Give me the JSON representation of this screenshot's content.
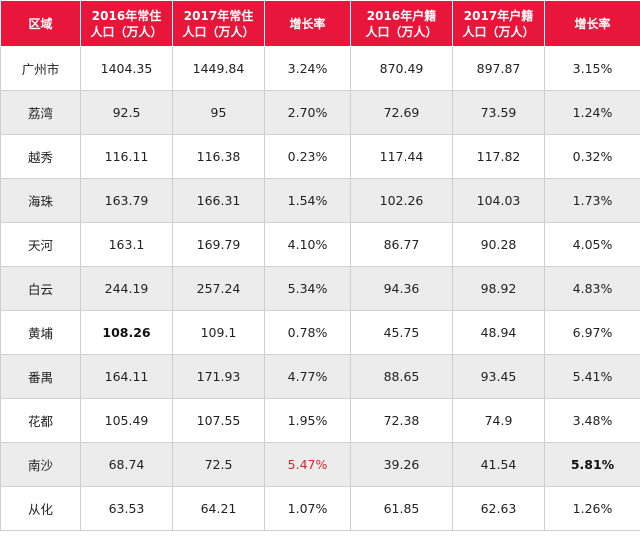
{
  "headers": [
    "区域",
    "2016年常住\n人口（万人）",
    "2017年常住\n人口（万人）",
    "增长率",
    "2016年户籍\n人口（万人）",
    "2017年户籍\n人口（万人）",
    "增长率"
  ],
  "rows": [
    [
      "广州市",
      "1404.35",
      "1449.84",
      "3.24%",
      "870.49",
      "897.87",
      "3.15%"
    ],
    [
      "荔湾",
      "92.5",
      "95",
      "2.70%",
      "72.69",
      "73.59",
      "1.24%"
    ],
    [
      "越秀",
      "116.11",
      "116.38",
      "0.23%",
      "117.44",
      "117.82",
      "0.32%"
    ],
    [
      "海珠",
      "163.79",
      "166.31",
      "1.54%",
      "102.26",
      "104.03",
      "1.73%"
    ],
    [
      "天河",
      "163.1",
      "169.79",
      "4.10%",
      "86.77",
      "90.28",
      "4.05%"
    ],
    [
      "白云",
      "244.19",
      "257.24",
      "5.34%",
      "94.36",
      "98.92",
      "4.83%"
    ],
    [
      "黄埔",
      "108.26",
      "109.1",
      "0.78%",
      "45.75",
      "48.94",
      "6.97%"
    ],
    [
      "番禺",
      "164.11",
      "171.93",
      "4.77%",
      "88.65",
      "93.45",
      "5.41%"
    ],
    [
      "花都",
      "105.49",
      "107.55",
      "1.95%",
      "72.38",
      "74.9",
      "3.48%"
    ],
    [
      "南沙",
      "68.74",
      "72.5",
      "5.47%",
      "39.26",
      "41.54",
      "5.81%"
    ],
    [
      "从化",
      "63.53",
      "64.21",
      "1.07%",
      "61.85",
      "62.63",
      "1.26%"
    ]
  ],
  "colors": {
    "header_bg": "#e8163a",
    "header_text": "#ffffff",
    "stripe_bg": "#ececec",
    "highlight_red": "#d8262d"
  }
}
